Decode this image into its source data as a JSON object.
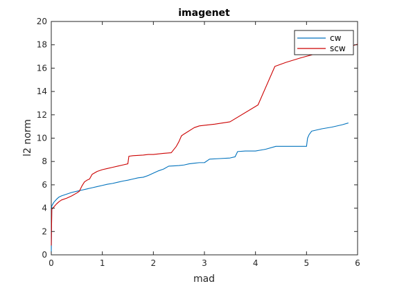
{
  "chart_data": {
    "type": "line",
    "title": "imagenet",
    "xlabel": "mad",
    "ylabel": "l2 norm",
    "xlim": [
      0,
      6
    ],
    "ylim": [
      0,
      20
    ],
    "xticks": [
      0,
      1,
      2,
      3,
      4,
      5,
      6
    ],
    "yticks": [
      0,
      2,
      4,
      6,
      8,
      10,
      12,
      14,
      16,
      18,
      20
    ],
    "grid": false,
    "legend_position": "top-right",
    "series": [
      {
        "name": "cw",
        "color": "#0072bd",
        "x": [
          0,
          0.01,
          0.05,
          0.1,
          0.15,
          0.2,
          0.3,
          0.4,
          0.5,
          0.6,
          0.7,
          0.8,
          0.9,
          1.0,
          1.1,
          1.2,
          1.3,
          1.4,
          1.5,
          1.6,
          1.7,
          1.8,
          1.9,
          2.0,
          2.1,
          2.2,
          2.3,
          2.5,
          2.6,
          2.7,
          2.8,
          2.9,
          3.0,
          3.1,
          3.3,
          3.5,
          3.6,
          3.65,
          3.8,
          4.0,
          4.2,
          4.4,
          4.6,
          4.8,
          5.0,
          5.02,
          5.05,
          5.1,
          5.3,
          5.5,
          5.7,
          5.82
        ],
        "y": [
          0.2,
          4.2,
          4.5,
          4.75,
          4.95,
          5.05,
          5.2,
          5.35,
          5.45,
          5.55,
          5.65,
          5.75,
          5.85,
          5.95,
          6.05,
          6.12,
          6.22,
          6.32,
          6.4,
          6.5,
          6.6,
          6.65,
          6.8,
          7.0,
          7.2,
          7.35,
          7.6,
          7.65,
          7.7,
          7.8,
          7.85,
          7.9,
          7.9,
          8.2,
          8.25,
          8.3,
          8.4,
          8.85,
          8.9,
          8.9,
          9.05,
          9.3,
          9.3,
          9.3,
          9.3,
          10.0,
          10.3,
          10.6,
          10.8,
          10.95,
          11.15,
          11.3
        ]
      },
      {
        "name": "scw",
        "color": "#cc0000",
        "x": [
          0,
          0.01,
          0.05,
          0.1,
          0.15,
          0.2,
          0.3,
          0.4,
          0.5,
          0.55,
          0.6,
          0.65,
          0.7,
          0.75,
          0.8,
          0.9,
          1.0,
          1.1,
          1.2,
          1.3,
          1.4,
          1.5,
          1.52,
          1.6,
          1.8,
          1.9,
          2.0,
          2.2,
          2.35,
          2.45,
          2.5,
          2.55,
          2.6,
          2.8,
          2.9,
          3.0,
          3.2,
          3.5,
          4.05,
          4.38,
          4.6,
          4.9,
          5.2,
          5.5,
          5.8,
          6.0
        ],
        "y": [
          0.8,
          3.9,
          4.1,
          4.35,
          4.55,
          4.7,
          4.85,
          5.05,
          5.3,
          5.45,
          5.9,
          6.25,
          6.4,
          6.5,
          6.9,
          7.15,
          7.3,
          7.4,
          7.5,
          7.6,
          7.7,
          7.8,
          8.45,
          8.5,
          8.55,
          8.6,
          8.6,
          8.7,
          8.75,
          9.3,
          9.7,
          10.2,
          10.35,
          10.9,
          11.05,
          11.1,
          11.2,
          11.4,
          12.85,
          16.15,
          16.5,
          16.9,
          17.25,
          17.55,
          17.8,
          18.05
        ]
      }
    ]
  }
}
